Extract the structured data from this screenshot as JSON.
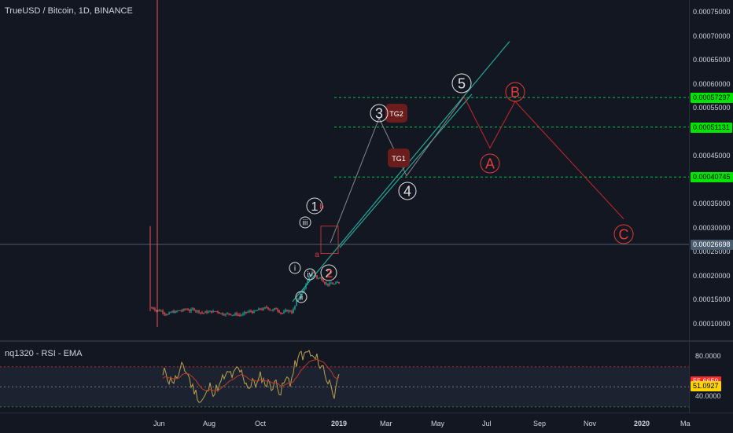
{
  "chart": {
    "title": "TrueUSD / Bitcoin, 1D, BINANCE",
    "rsi_title": "nq1320 - RSI - EMA"
  },
  "price_axis": {
    "labels": [
      "0.00075000",
      "0.00070000",
      "0.00065000",
      "0.00060000",
      "0.00055000",
      "0.00045000",
      "0.00035000",
      "0.00030000",
      "0.00025000",
      "0.00020000",
      "0.00015000",
      "0.00010000"
    ],
    "values": [
      0.00075,
      0.0007,
      0.00065,
      0.0006,
      0.00055,
      0.00045,
      0.00035,
      0.0003,
      0.00025,
      0.0002,
      0.00015,
      0.0001
    ]
  },
  "price_tags": [
    {
      "label": "0.00057297",
      "value": 0.00057297,
      "bg": "#00e600",
      "fg": "#000000"
    },
    {
      "label": "0.00051131",
      "value": 0.00051131,
      "bg": "#00e600",
      "fg": "#000000"
    },
    {
      "label": "0.00040745",
      "value": 0.00040745,
      "bg": "#00e600",
      "fg": "#000000"
    },
    {
      "label": "0.00026698",
      "value": 0.00026698,
      "bg": "#4a5d6e",
      "fg": "#ffffff"
    }
  ],
  "rsi_axis": {
    "labels": [
      "80.0000",
      "40.0000"
    ],
    "values": [
      80,
      40
    ]
  },
  "rsi_tags": [
    {
      "label": "55.6659",
      "value": 55.6659,
      "bg": "#ff2c2c",
      "fg": "#ffffff"
    },
    {
      "label": "51.0927",
      "value": 51.0927,
      "bg": "#ffd400",
      "fg": "#000000"
    }
  ],
  "time_axis": {
    "labels": [
      "Jun",
      "Aug",
      "Oct",
      "2019",
      "Mar",
      "May",
      "Jul",
      "Sep",
      "Nov",
      "2020",
      "Ma"
    ]
  },
  "wave_labels": {
    "white": [
      "1",
      "3",
      "5",
      "4",
      "2",
      "i",
      "ii",
      "iii",
      "iv"
    ],
    "red": [
      "A",
      "B",
      "C",
      "a",
      "b",
      "2"
    ],
    "targets": [
      "TG1",
      "TG2"
    ]
  },
  "colors": {
    "background": "#131722",
    "up": "#26a69a",
    "down": "#ef5350",
    "projection_red": "#c62828",
    "trendline": "#26a69a",
    "target_line": "#00c853",
    "rsi_line": "#b7a350",
    "rsi_ema": "#c0392b"
  }
}
